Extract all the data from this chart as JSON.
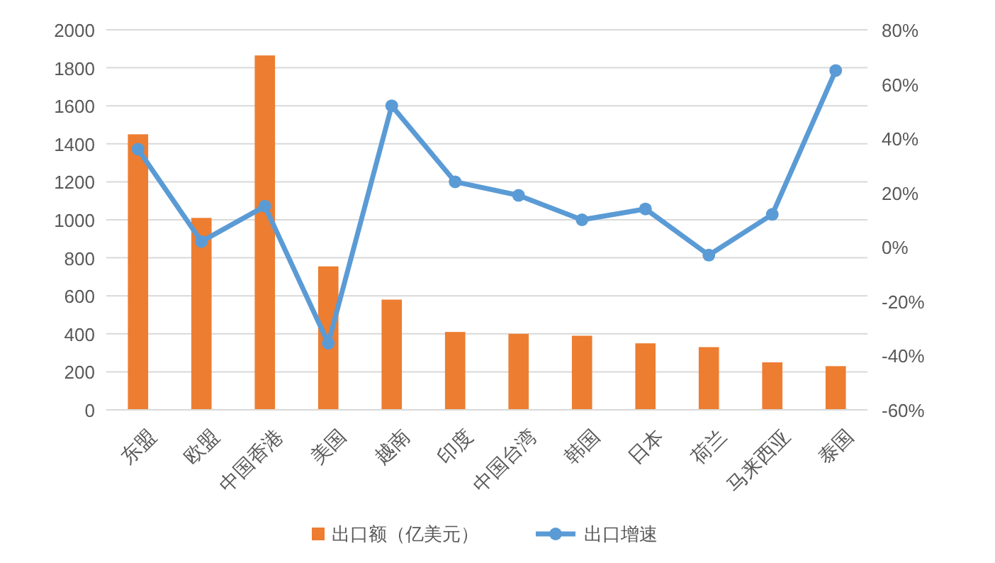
{
  "chart_data": {
    "type": "bar",
    "categories": [
      "东盟",
      "欧盟",
      "中国香港",
      "美国",
      "越南",
      "印度",
      "中国台湾",
      "韩国",
      "日本",
      "荷兰",
      "马来西亚",
      "泰国"
    ],
    "series": [
      {
        "name": "出口额（亿美元）",
        "color": "#ed7d31",
        "values": [
          1450,
          1010,
          1865,
          755,
          580,
          410,
          400,
          390,
          350,
          330,
          250,
          230
        ]
      },
      {
        "name": "出口增速",
        "type": "line",
        "axis": "y2",
        "color": "#5b9bd5",
        "marker": "circle",
        "values": [
          36,
          2,
          15,
          -35.5,
          52,
          24,
          19,
          10,
          14,
          -3,
          12,
          65
        ]
      }
    ],
    "ylim": [
      0,
      2000
    ],
    "yticks": [
      0,
      200,
      400,
      600,
      800,
      1000,
      1200,
      1400,
      1600,
      1800,
      2000
    ],
    "y2lim": [
      -60,
      80
    ],
    "y2ticks": [
      {
        "value": -60,
        "label": "-60%"
      },
      {
        "value": -40,
        "label": "-40%"
      },
      {
        "value": -20,
        "label": "-20%"
      },
      {
        "value": 0,
        "label": "0%"
      },
      {
        "value": 20,
        "label": "20%"
      },
      {
        "value": 40,
        "label": "40%"
      },
      {
        "value": 60,
        "label": "60%"
      },
      {
        "value": 80,
        "label": "80%"
      }
    ],
    "grid": "y",
    "legend": "bottom"
  }
}
